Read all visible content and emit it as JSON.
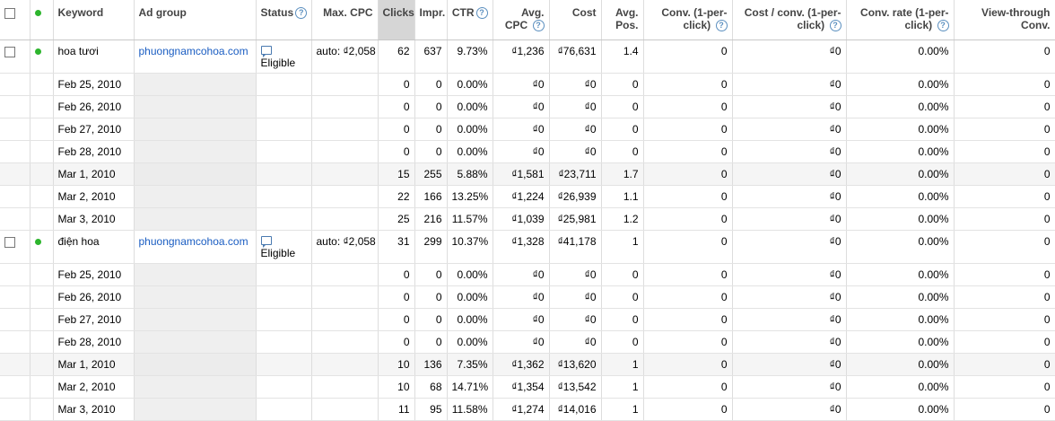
{
  "colors": {
    "sorted_header": "#d6d6d6",
    "link": "#1a5dc2",
    "status_dot": "#2db52d"
  },
  "headers": {
    "keyword": "Keyword",
    "ad_group": "Ad group",
    "status": "Status",
    "max_cpc": "Max. CPC",
    "clicks": "Clicks",
    "impr": "Impr.",
    "ctr": "CTR",
    "avg_cpc": "Avg. CPC",
    "cost": "Cost",
    "avg_pos": "Avg. Pos.",
    "conv": "Conv. (1-per-click)",
    "cost_conv": "Cost / conv. (1-per-click)",
    "conv_rate": "Conv. rate (1-per-click)",
    "view_through": "View-through Conv."
  },
  "keywords": [
    {
      "keyword": "hoa tươi",
      "ad_group": "phuongnamcohoa.com",
      "status": "Eligible",
      "max_cpc": "auto: ₫2,058",
      "stats": {
        "clicks": "62",
        "impr": "637",
        "ctr": "9.73%",
        "avg_cpc": "₫1,236",
        "cost": "₫76,631",
        "avg_pos": "1.4",
        "conv": "0",
        "cost_conv": "₫0",
        "conv_rate": "0.00%",
        "view_through": "0"
      },
      "rows": [
        {
          "date": "Feb 25, 2010",
          "clicks": "0",
          "impr": "0",
          "ctr": "0.00%",
          "avg_cpc": "₫0",
          "cost": "₫0",
          "avg_pos": "0",
          "conv": "0",
          "cost_conv": "₫0",
          "conv_rate": "0.00%",
          "view_through": "0"
        },
        {
          "date": "Feb 26, 2010",
          "clicks": "0",
          "impr": "0",
          "ctr": "0.00%",
          "avg_cpc": "₫0",
          "cost": "₫0",
          "avg_pos": "0",
          "conv": "0",
          "cost_conv": "₫0",
          "conv_rate": "0.00%",
          "view_through": "0"
        },
        {
          "date": "Feb 27, 2010",
          "clicks": "0",
          "impr": "0",
          "ctr": "0.00%",
          "avg_cpc": "₫0",
          "cost": "₫0",
          "avg_pos": "0",
          "conv": "0",
          "cost_conv": "₫0",
          "conv_rate": "0.00%",
          "view_through": "0"
        },
        {
          "date": "Feb 28, 2010",
          "clicks": "0",
          "impr": "0",
          "ctr": "0.00%",
          "avg_cpc": "₫0",
          "cost": "₫0",
          "avg_pos": "0",
          "conv": "0",
          "cost_conv": "₫0",
          "conv_rate": "0.00%",
          "view_through": "0"
        },
        {
          "date": "Mar 1, 2010",
          "clicks": "15",
          "impr": "255",
          "ctr": "5.88%",
          "avg_cpc": "₫1,581",
          "cost": "₫23,711",
          "avg_pos": "1.7",
          "conv": "0",
          "cost_conv": "₫0",
          "conv_rate": "0.00%",
          "view_through": "0"
        },
        {
          "date": "Mar 2, 2010",
          "clicks": "22",
          "impr": "166",
          "ctr": "13.25%",
          "avg_cpc": "₫1,224",
          "cost": "₫26,939",
          "avg_pos": "1.1",
          "conv": "0",
          "cost_conv": "₫0",
          "conv_rate": "0.00%",
          "view_through": "0"
        },
        {
          "date": "Mar 3, 2010",
          "clicks": "25",
          "impr": "216",
          "ctr": "11.57%",
          "avg_cpc": "₫1,039",
          "cost": "₫25,981",
          "avg_pos": "1.2",
          "conv": "0",
          "cost_conv": "₫0",
          "conv_rate": "0.00%",
          "view_through": "0"
        }
      ]
    },
    {
      "keyword": "điện hoa",
      "ad_group": "phuongnamcohoa.com",
      "status": "Eligible",
      "max_cpc": "auto: ₫2,058",
      "stats": {
        "clicks": "31",
        "impr": "299",
        "ctr": "10.37%",
        "avg_cpc": "₫1,328",
        "cost": "₫41,178",
        "avg_pos": "1",
        "conv": "0",
        "cost_conv": "₫0",
        "conv_rate": "0.00%",
        "view_through": "0"
      },
      "rows": [
        {
          "date": "Feb 25, 2010",
          "clicks": "0",
          "impr": "0",
          "ctr": "0.00%",
          "avg_cpc": "₫0",
          "cost": "₫0",
          "avg_pos": "0",
          "conv": "0",
          "cost_conv": "₫0",
          "conv_rate": "0.00%",
          "view_through": "0"
        },
        {
          "date": "Feb 26, 2010",
          "clicks": "0",
          "impr": "0",
          "ctr": "0.00%",
          "avg_cpc": "₫0",
          "cost": "₫0",
          "avg_pos": "0",
          "conv": "0",
          "cost_conv": "₫0",
          "conv_rate": "0.00%",
          "view_through": "0"
        },
        {
          "date": "Feb 27, 2010",
          "clicks": "0",
          "impr": "0",
          "ctr": "0.00%",
          "avg_cpc": "₫0",
          "cost": "₫0",
          "avg_pos": "0",
          "conv": "0",
          "cost_conv": "₫0",
          "conv_rate": "0.00%",
          "view_through": "0"
        },
        {
          "date": "Feb 28, 2010",
          "clicks": "0",
          "impr": "0",
          "ctr": "0.00%",
          "avg_cpc": "₫0",
          "cost": "₫0",
          "avg_pos": "0",
          "conv": "0",
          "cost_conv": "₫0",
          "conv_rate": "0.00%",
          "view_through": "0"
        },
        {
          "date": "Mar 1, 2010",
          "clicks": "10",
          "impr": "136",
          "ctr": "7.35%",
          "avg_cpc": "₫1,362",
          "cost": "₫13,620",
          "avg_pos": "1",
          "conv": "0",
          "cost_conv": "₫0",
          "conv_rate": "0.00%",
          "view_through": "0"
        },
        {
          "date": "Mar 2, 2010",
          "clicks": "10",
          "impr": "68",
          "ctr": "14.71%",
          "avg_cpc": "₫1,354",
          "cost": "₫13,542",
          "avg_pos": "1",
          "conv": "0",
          "cost_conv": "₫0",
          "conv_rate": "0.00%",
          "view_through": "0"
        },
        {
          "date": "Mar 3, 2010",
          "clicks": "11",
          "impr": "95",
          "ctr": "11.58%",
          "avg_cpc": "₫1,274",
          "cost": "₫14,016",
          "avg_pos": "1",
          "conv": "0",
          "cost_conv": "₫0",
          "conv_rate": "0.00%",
          "view_through": "0"
        }
      ]
    }
  ]
}
